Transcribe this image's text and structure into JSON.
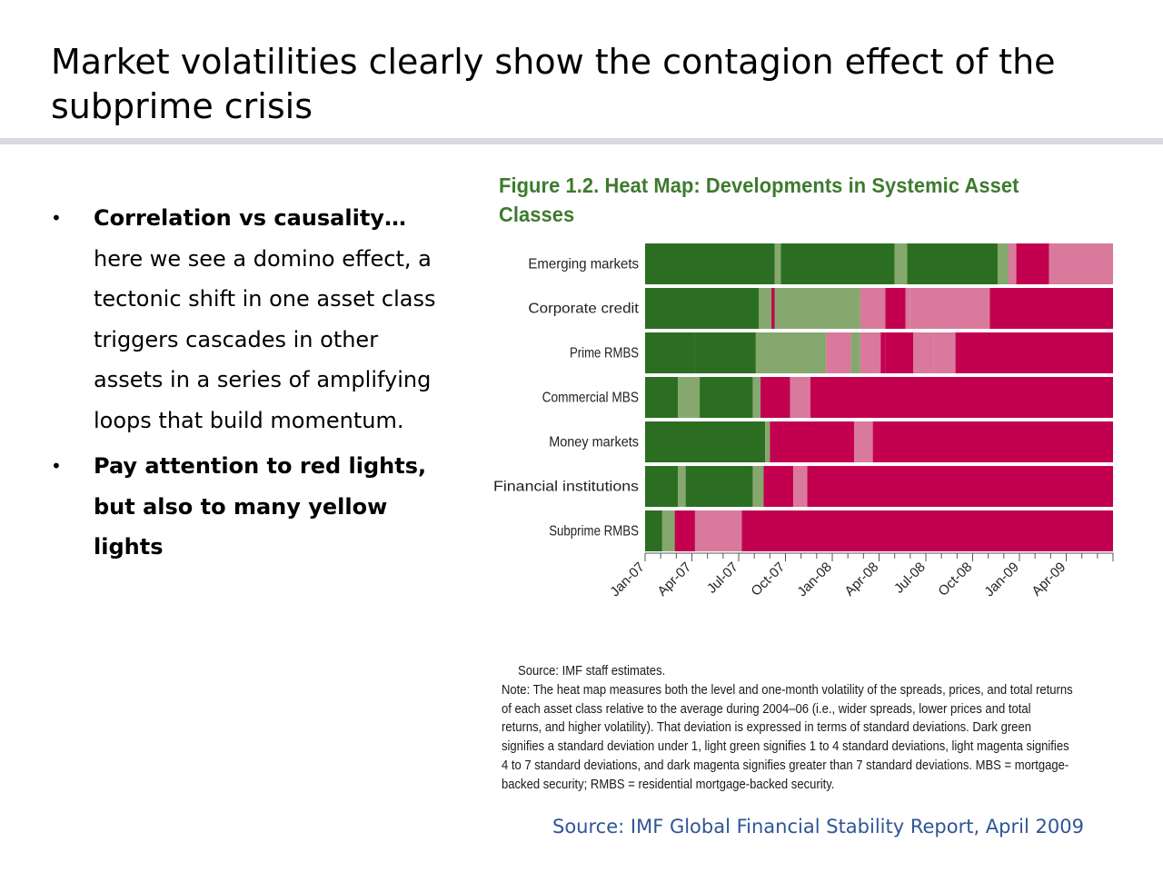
{
  "slide": {
    "title": "Market volatilities clearly show the contagion effect of the subprime crisis",
    "bullets": [
      {
        "bold": "Correlation vs causality…",
        "text": " here we see a domino effect, a tectonic shift in one asset class triggers cascades in other assets in a series of amplifying loops that build momentum."
      },
      {
        "bold": "Pay attention to red lights, but also to many yellow lights",
        "text": ""
      }
    ],
    "source_footer": "Source: IMF Global Financial Stability Report, April 2009",
    "bullet_glyph": "•"
  },
  "figure": {
    "title": "Figure 1.2. Heat Map: Developments in Systemic Asset Classes",
    "source_line": "Source: IMF staff estimates.",
    "note": "Note: The heat map measures both the level and one-month volatility of the spreads, prices, and total returns of each asset class relative to the average during 2004–06 (i.e., wider spreads, lower prices and total returns, and higher volatility). That deviation is expressed in terms of standard deviations. Dark green signifies a standard deviation under 1, light green signifies 1 to 4 standard deviations, light magenta signifies 4 to 7 standard deviations, and dark magenta signifies greater than 7 standard deviations. MBS = mortgage-backed security; RMBS = residential mortgage-backed security."
  },
  "chart_data": {
    "type": "heatmap",
    "title": "Figure 1.2. Heat Map: Developments in Systemic Asset Classes",
    "x_range": [
      "2007-01",
      "2009-04"
    ],
    "x_tick_labels": [
      "Jan-07",
      "Apr-07",
      "Jul-07",
      "Oct-07",
      "Jan-08",
      "Apr-08",
      "Jul-08",
      "Oct-08",
      "Jan-09",
      "Apr-09"
    ],
    "levels": {
      "dark_green": "#2b6e22",
      "light_green": "#86a86f",
      "light_magenta": "#d9799b",
      "dark_magenta": "#c2004f"
    },
    "rows": [
      {
        "label": "Emerging markets",
        "segments": [
          {
            "from": 0.0,
            "to": 8.3,
            "level": "dark_green"
          },
          {
            "from": 8.3,
            "to": 8.7,
            "level": "light_green"
          },
          {
            "from": 8.7,
            "to": 16.0,
            "level": "dark_green"
          },
          {
            "from": 16.0,
            "to": 16.8,
            "level": "light_green"
          },
          {
            "from": 16.8,
            "to": 22.6,
            "level": "dark_green"
          },
          {
            "from": 22.6,
            "to": 23.3,
            "level": "light_green"
          },
          {
            "from": 23.3,
            "to": 23.8,
            "level": "light_magenta"
          },
          {
            "from": 23.8,
            "to": 25.9,
            "level": "dark_magenta"
          },
          {
            "from": 25.9,
            "to": 30.0,
            "level": "light_magenta"
          }
        ]
      },
      {
        "label": "Corporate credit",
        "segments": [
          {
            "from": 0.0,
            "to": 7.3,
            "level": "dark_green"
          },
          {
            "from": 7.3,
            "to": 8.1,
            "level": "light_green"
          },
          {
            "from": 8.1,
            "to": 8.3,
            "level": "dark_magenta"
          },
          {
            "from": 8.3,
            "to": 13.8,
            "level": "light_green"
          },
          {
            "from": 13.8,
            "to": 15.4,
            "level": "light_magenta"
          },
          {
            "from": 15.4,
            "to": 16.7,
            "level": "dark_magenta"
          },
          {
            "from": 16.7,
            "to": 17.0,
            "level": "light_magenta"
          },
          {
            "from": 17.0,
            "to": 22.1,
            "level": "light_magenta"
          },
          {
            "from": 22.1,
            "to": 30.0,
            "level": "dark_magenta"
          }
        ]
      },
      {
        "label": "Prime RMBS",
        "segments": [
          {
            "from": 0.0,
            "to": 3.2,
            "level": "dark_green"
          },
          {
            "from": 3.2,
            "to": 7.1,
            "level": "dark_green"
          },
          {
            "from": 7.1,
            "to": 11.6,
            "level": "light_green"
          },
          {
            "from": 11.6,
            "to": 13.2,
            "level": "light_magenta"
          },
          {
            "from": 13.2,
            "to": 13.8,
            "level": "light_green"
          },
          {
            "from": 13.8,
            "to": 15.1,
            "level": "light_magenta"
          },
          {
            "from": 15.1,
            "to": 15.4,
            "level": "dark_magenta"
          },
          {
            "from": 15.4,
            "to": 17.2,
            "level": "dark_magenta"
          },
          {
            "from": 17.2,
            "to": 18.5,
            "level": "light_magenta"
          },
          {
            "from": 18.5,
            "to": 19.9,
            "level": "light_magenta"
          },
          {
            "from": 19.9,
            "to": 30.0,
            "level": "dark_magenta"
          }
        ]
      },
      {
        "label": "Commercial MBS",
        "segments": [
          {
            "from": 0.0,
            "to": 2.1,
            "level": "dark_green"
          },
          {
            "from": 2.1,
            "to": 3.5,
            "level": "light_green"
          },
          {
            "from": 3.5,
            "to": 6.9,
            "level": "dark_green"
          },
          {
            "from": 6.9,
            "to": 7.4,
            "level": "light_green"
          },
          {
            "from": 7.4,
            "to": 9.3,
            "level": "dark_magenta"
          },
          {
            "from": 9.3,
            "to": 10.6,
            "level": "light_magenta"
          },
          {
            "from": 10.6,
            "to": 30.0,
            "level": "dark_magenta"
          }
        ]
      },
      {
        "label": "Money markets",
        "segments": [
          {
            "from": 0.0,
            "to": 7.7,
            "level": "dark_green"
          },
          {
            "from": 7.7,
            "to": 8.0,
            "level": "light_green"
          },
          {
            "from": 8.0,
            "to": 13.4,
            "level": "dark_magenta"
          },
          {
            "from": 13.4,
            "to": 14.6,
            "level": "light_magenta"
          },
          {
            "from": 14.6,
            "to": 30.0,
            "level": "dark_magenta"
          }
        ]
      },
      {
        "label": "Financial institutions",
        "segments": [
          {
            "from": 0.0,
            "to": 2.1,
            "level": "dark_green"
          },
          {
            "from": 2.1,
            "to": 2.6,
            "level": "light_green"
          },
          {
            "from": 2.6,
            "to": 6.9,
            "level": "dark_green"
          },
          {
            "from": 6.9,
            "to": 7.6,
            "level": "light_green"
          },
          {
            "from": 7.6,
            "to": 9.5,
            "level": "dark_magenta"
          },
          {
            "from": 9.5,
            "to": 10.4,
            "level": "light_magenta"
          },
          {
            "from": 10.4,
            "to": 30.0,
            "level": "dark_magenta"
          }
        ]
      },
      {
        "label": "Subprime RMBS",
        "segments": [
          {
            "from": 0.0,
            "to": 1.1,
            "level": "dark_green"
          },
          {
            "from": 1.1,
            "to": 1.9,
            "level": "light_green"
          },
          {
            "from": 1.9,
            "to": 3.2,
            "level": "dark_magenta"
          },
          {
            "from": 3.2,
            "to": 6.2,
            "level": "light_magenta"
          },
          {
            "from": 6.2,
            "to": 30.0,
            "level": "dark_magenta"
          }
        ]
      }
    ],
    "x_unit": "months since Jan-07",
    "grid": false,
    "legend": "none"
  }
}
